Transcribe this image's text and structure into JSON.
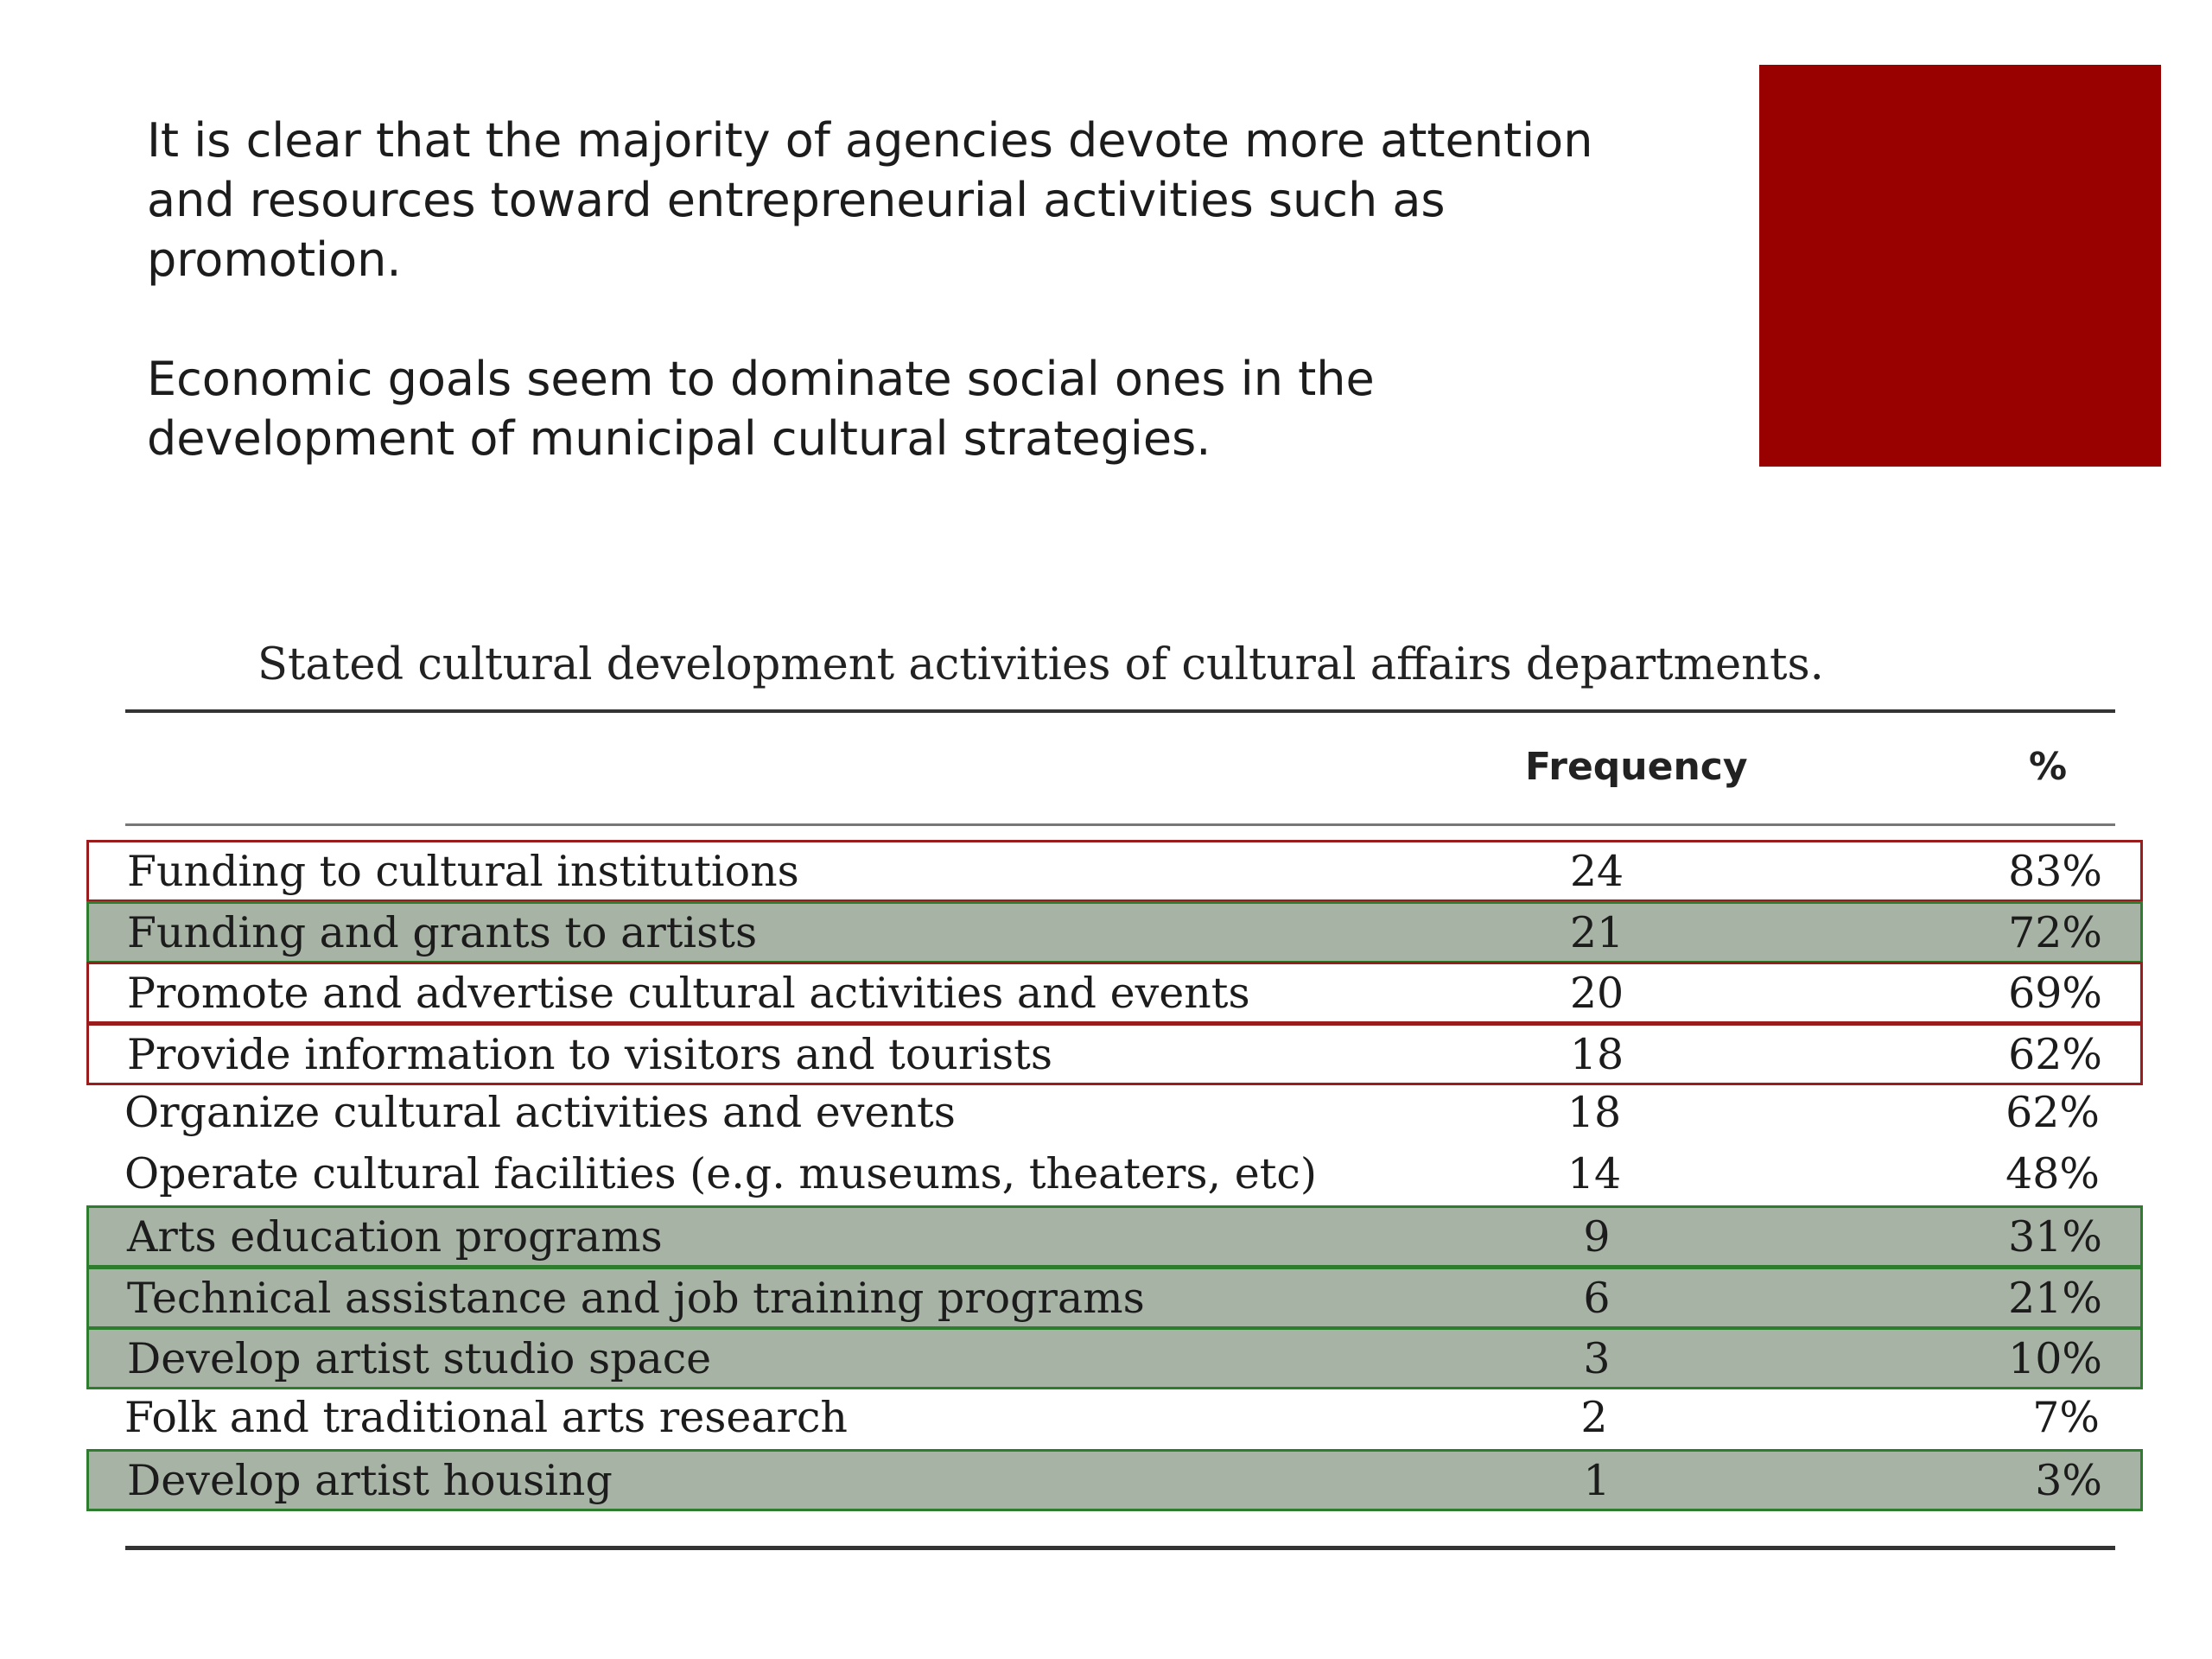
{
  "intro": {
    "paragraph1": "It is clear that the majority of agencies devote more attention\nand resources toward entrepreneurial activities such as\npromotion.",
    "paragraph2": "Economic goals seem to dominate social ones in the\ndevelopment of municipal cultural strategies."
  },
  "colors": {
    "accent_square": "#990000",
    "highlight_red_border": "#9b1c1c",
    "highlight_green_border": "#2e7d2e",
    "highlight_green_fill": "#a7b3a4"
  },
  "table": {
    "caption": "Stated cultural development activities of cultural affairs departments.",
    "headers": {
      "activity": "",
      "frequency": "Frequency",
      "percent": "%"
    },
    "rows": [
      {
        "activity": "Funding to cultural institutions",
        "frequency": "24",
        "percent": "83%",
        "highlight": "red"
      },
      {
        "activity": "Funding and grants to artists",
        "frequency": "21",
        "percent": "72%",
        "highlight": "green"
      },
      {
        "activity": "Promote and advertise cultural activities and events",
        "frequency": "20",
        "percent": "69%",
        "highlight": "red"
      },
      {
        "activity": "Provide information to visitors and tourists",
        "frequency": "18",
        "percent": "62%",
        "highlight": "red"
      },
      {
        "activity": "Organize cultural activities and events",
        "frequency": "18",
        "percent": "62%",
        "highlight": "none"
      },
      {
        "activity": "Operate cultural facilities (e.g. museums, theaters, etc)",
        "frequency": "14",
        "percent": "48%",
        "highlight": "none"
      },
      {
        "activity": "Arts education programs",
        "frequency": "9",
        "percent": "31%",
        "highlight": "green"
      },
      {
        "activity": "Technical assistance and job training programs",
        "frequency": "6",
        "percent": "21%",
        "highlight": "green"
      },
      {
        "activity": "Develop artist studio space",
        "frequency": "3",
        "percent": "10%",
        "highlight": "green"
      },
      {
        "activity": "Folk and traditional arts research",
        "frequency": "2",
        "percent": "7%",
        "highlight": "none"
      },
      {
        "activity": "Develop artist housing",
        "frequency": "1",
        "percent": "3%",
        "highlight": "green"
      }
    ]
  }
}
